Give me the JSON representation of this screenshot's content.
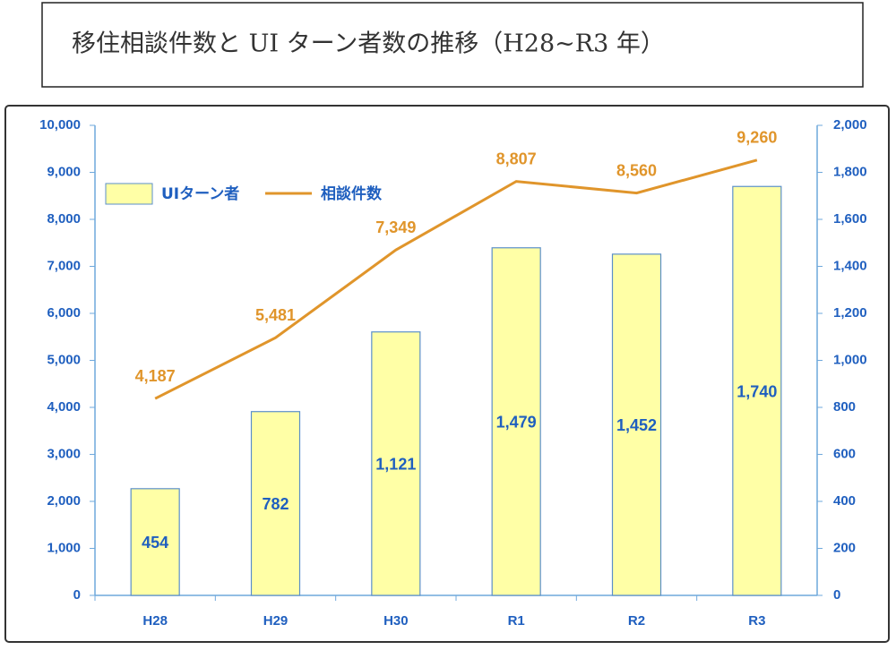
{
  "chart_data": {
    "type": "bar_line",
    "title": "移住相談件数と UI ターン者数の推移（H28~R3 年）",
    "categories": [
      "H28",
      "H29",
      "H30",
      "R1",
      "R2",
      "R3"
    ],
    "series": [
      {
        "name": "UIターン者",
        "type": "bar",
        "axis": "y2",
        "color": "#ffffa6",
        "values": [
          454,
          782,
          1121,
          1479,
          1452,
          1740
        ],
        "value_labels": [
          "454",
          "782",
          "1,121",
          "1,479",
          "1,452",
          "1,740"
        ]
      },
      {
        "name": "相談件数",
        "type": "line",
        "color": "#e0952b",
        "values": [
          4187,
          5481,
          7349,
          8807,
          8560,
          9260
        ],
        "value_labels": [
          "4,187",
          "5,481",
          "7,349",
          "8,807",
          "8,560",
          "9,260"
        ]
      }
    ],
    "ylim": [
      0,
      10000
    ],
    "yticks": [
      0,
      {
        "value": 1000,
        "label": "1,000"
      },
      {
        "value": 2000,
        "label": "2,000"
      },
      {
        "value": 3000,
        "label": "3,000"
      },
      {
        "value": 4000,
        "label": "4,000"
      },
      {
        "value": 5000,
        "label": "5,000"
      },
      {
        "value": 6000,
        "label": "6,000"
      },
      {
        "value": 7000,
        "label": "7,000"
      },
      {
        "value": 8000,
        "label": "8,000"
      },
      {
        "value": 9000,
        "label": "9,000"
      },
      {
        "value": 10000,
        "label": "10,000"
      }
    ],
    "y2lim": [
      0,
      2000
    ],
    "y2ticks": [
      0,
      200,
      400,
      600,
      800,
      {
        "value": 1000,
        "label": "1,000"
      },
      {
        "value": 1200,
        "label": "1,200"
      },
      {
        "value": 1400,
        "label": "1,400"
      },
      {
        "value": 1600,
        "label": "1,600"
      },
      {
        "value": 1800,
        "label": "1,800"
      },
      {
        "value": 2000,
        "label": "2,000"
      }
    ],
    "legend": "upper left"
  }
}
